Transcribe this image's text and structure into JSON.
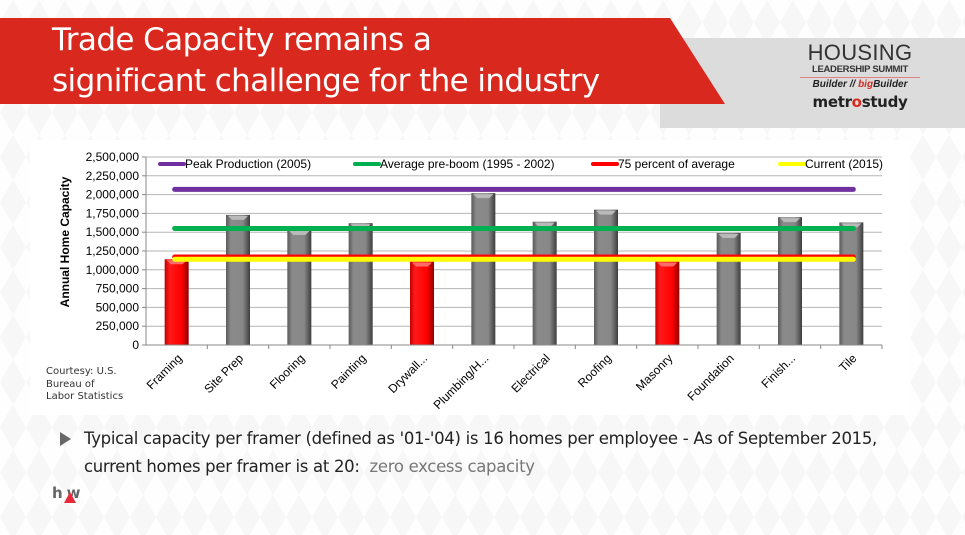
{
  "slide": {
    "title_line1": "Trade Capacity remains a",
    "title_line2": "significant challenge for the industry",
    "accent_color": "#d9291f"
  },
  "logo": {
    "housing": "HOUSING",
    "leadership_summit": "LEADERSHIP SUMMIT",
    "builder": "Builder",
    "separator": "//",
    "big": "big",
    "big_builder": "Builder",
    "metro_pre": "metr",
    "metro_o": "o",
    "metro_post": "study"
  },
  "courtesy": {
    "line1": "Courtesy: U.S.",
    "line2": "Bureau of",
    "line3": "Labor Statistics"
  },
  "bullet": {
    "text_main": "Typical capacity per framer (defined as '01-'04) is 16  homes per employee - As of September 2015, current homes per framer is at 20:",
    "text_muted": "zero excess capacity"
  },
  "footer_logo": {
    "text": "hw"
  },
  "chart_data": {
    "type": "bar",
    "title": "",
    "xlabel": "",
    "ylabel": "Annual Home Capacity",
    "ylim": [
      0,
      2500000
    ],
    "yticks": [
      0,
      250000,
      500000,
      750000,
      1000000,
      1250000,
      1500000,
      1750000,
      2000000,
      2250000,
      2500000
    ],
    "ytick_labels": [
      "0",
      "250,000",
      "500,000",
      "750,000",
      "1,000,000",
      "1,250,000",
      "1,500,000",
      "1,750,000",
      "2,000,000",
      "2,250,000",
      "2,500,000"
    ],
    "grid": true,
    "legend_position": "top",
    "categories": [
      "Framing",
      "Site Prep",
      "Flooring",
      "Painting",
      "Drywall...",
      "Plumbing/H...",
      "Electrical",
      "Roofing",
      "Masonry",
      "Foundation",
      "Finish...",
      "Tile"
    ],
    "values": [
      1140000,
      1730000,
      1530000,
      1620000,
      1110000,
      2020000,
      1640000,
      1800000,
      1110000,
      1490000,
      1700000,
      1630000
    ],
    "bar_colors": [
      "red",
      "gray",
      "gray",
      "gray",
      "red",
      "gray",
      "gray",
      "gray",
      "red",
      "gray",
      "gray",
      "gray"
    ],
    "colors": {
      "red": "#ff0000",
      "gray": "#808080"
    },
    "reference_lines": [
      {
        "name": "Peak Production (2005)",
        "value": 2070000,
        "color": "#7030a0"
      },
      {
        "name": "Average pre-boom (1995 - 2002)",
        "value": 1550000,
        "color": "#00b050"
      },
      {
        "name": "75 percent of average",
        "value": 1170000,
        "color": "#ff0000"
      },
      {
        "name": "Current (2015)",
        "value": 1140000,
        "color": "#ffff00"
      }
    ]
  }
}
